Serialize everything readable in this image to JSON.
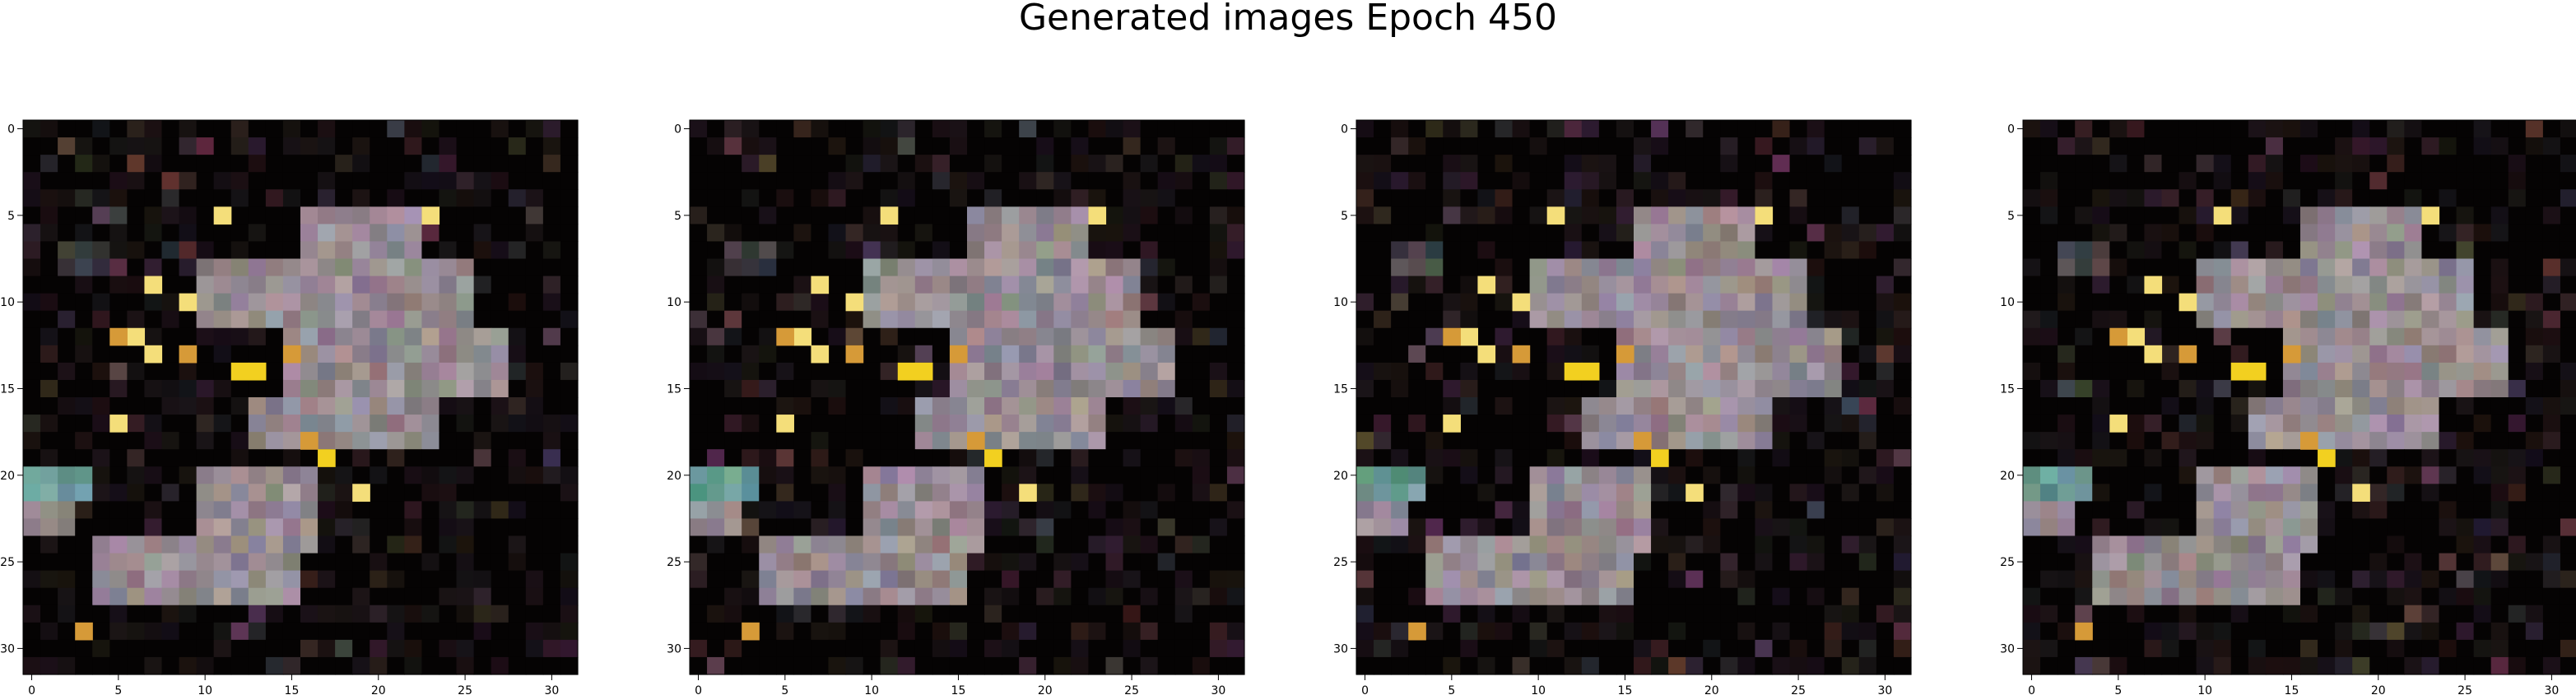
{
  "title": "Generated images Epoch 450",
  "panels": [
    {
      "id": "sample-1"
    },
    {
      "id": "sample-2"
    },
    {
      "id": "sample-3"
    },
    {
      "id": "sample-4"
    }
  ],
  "axes": {
    "xticks": [
      "0",
      "5",
      "10",
      "15",
      "20",
      "25",
      "30"
    ],
    "yticks": [
      "0",
      "5",
      "10",
      "15",
      "20",
      "25",
      "30"
    ],
    "range": [
      -0.5,
      31.5
    ],
    "grid_size": 32
  },
  "colors": {
    "background": "#050303",
    "gray": "#958a90",
    "teal": "#6a9a94",
    "yellow": "#f4de7a",
    "bright_yellow": "#f2d020",
    "orange": "#d69a38"
  }
}
